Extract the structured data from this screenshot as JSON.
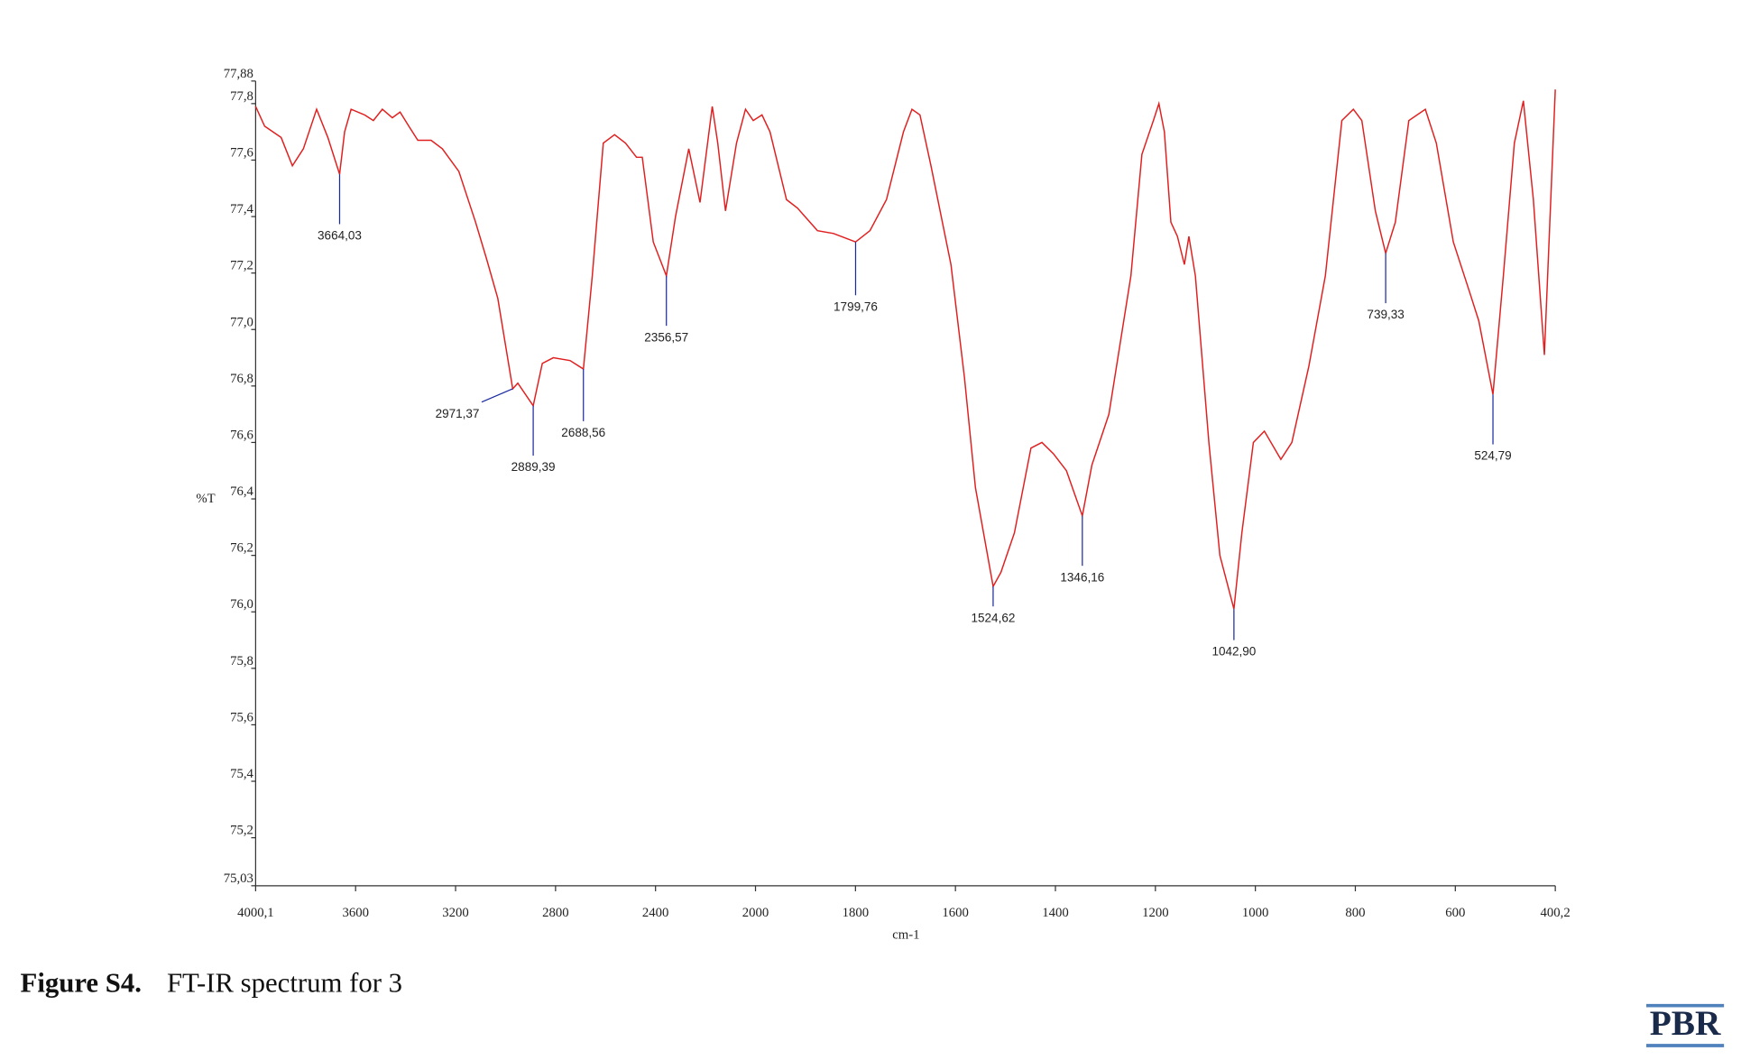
{
  "chart_data": {
    "type": "line",
    "ylabel": "%T",
    "xlabel": "cm-1",
    "xlim": [
      4000.1,
      400.2
    ],
    "xticks": [
      {
        "value": 4000.1,
        "label": "4000,1"
      },
      3600,
      3200,
      2800,
      2400,
      2000,
      1800,
      1600,
      1400,
      1200,
      1000,
      800,
      600,
      {
        "value": 400.2,
        "label": "400,2"
      }
    ],
    "ylim": [
      75.03,
      77.88
    ],
    "yticks": [
      {
        "value": 75.03,
        "label": "75,03"
      },
      {
        "value": 75.2,
        "label": "75,2"
      },
      {
        "value": 75.4,
        "label": "75,4"
      },
      {
        "value": 75.6,
        "label": "75,6"
      },
      {
        "value": 75.8,
        "label": "75,8"
      },
      {
        "value": 76.0,
        "label": "76,0"
      },
      {
        "value": 76.2,
        "label": "76,2"
      },
      {
        "value": 76.4,
        "label": "76,4"
      },
      {
        "value": 76.6,
        "label": "76,6"
      },
      {
        "value": 76.8,
        "label": "76,8"
      },
      {
        "value": 77.0,
        "label": "77,0"
      },
      {
        "value": 77.2,
        "label": "77,2"
      },
      {
        "value": 77.4,
        "label": "77,4"
      },
      {
        "value": 77.6,
        "label": "77,6"
      },
      {
        "value": 77.8,
        "label": "77,8"
      },
      {
        "value": 77.88,
        "label": "77,88"
      }
    ],
    "x": [
      4000.1,
      3964,
      3898,
      3853,
      3809,
      3756,
      3711,
      3664.03,
      3644,
      3618,
      3564,
      3529,
      3493,
      3453,
      3422,
      3387,
      3351,
      3298,
      3253,
      3187,
      3120,
      3076,
      3031,
      2971.37,
      2951,
      2889.39,
      2853,
      2809,
      2742,
      2688.56,
      2653,
      2609,
      2564,
      2520,
      2476,
      2453,
      2409,
      2356.57,
      2320,
      2267,
      2222,
      2173,
      2151,
      2120,
      2076,
      2040,
      2009,
      1987,
      1971,
      1938,
      1916,
      1876,
      1844,
      1799.76,
      1771,
      1738,
      1704,
      1687,
      1671,
      1649,
      1609,
      1582,
      1560,
      1524.62,
      1509,
      1482,
      1449,
      1427,
      1404,
      1378,
      1346.16,
      1327,
      1293,
      1249,
      1227,
      1204,
      1193,
      1182,
      1169,
      1156,
      1142,
      1133,
      1120,
      1093,
      1071,
      1042.9,
      1027,
      1004,
      982,
      949,
      927,
      893,
      860,
      827,
      804,
      787,
      760,
      739.33,
      720,
      693,
      660,
      638,
      604,
      571,
      553,
      524.79,
      504,
      482,
      464,
      444,
      422,
      400.2
    ],
    "series": [
      {
        "color": "#e02020",
        "values": [
          77.79,
          77.72,
          77.68,
          77.58,
          77.64,
          77.78,
          77.68,
          77.55,
          77.7,
          77.78,
          77.76,
          77.74,
          77.78,
          77.75,
          77.77,
          77.72,
          77.67,
          77.67,
          77.64,
          77.56,
          77.38,
          77.25,
          77.11,
          76.79,
          76.81,
          76.73,
          76.88,
          76.9,
          76.89,
          76.86,
          77.19,
          77.66,
          77.69,
          77.66,
          77.61,
          77.61,
          77.31,
          77.19,
          77.4,
          77.64,
          77.45,
          77.79,
          77.66,
          77.42,
          77.66,
          77.78,
          77.74,
          77.76,
          77.7,
          77.46,
          77.43,
          77.35,
          77.34,
          77.31,
          77.35,
          77.46,
          77.7,
          77.78,
          77.76,
          77.58,
          77.23,
          76.83,
          76.44,
          76.09,
          76.14,
          76.28,
          76.58,
          76.6,
          76.56,
          76.5,
          76.34,
          76.52,
          76.7,
          77.19,
          77.62,
          77.74,
          77.8,
          77.7,
          77.38,
          77.33,
          77.23,
          77.33,
          77.19,
          76.6,
          76.2,
          76.01,
          76.28,
          76.6,
          76.64,
          76.54,
          76.6,
          76.87,
          77.19,
          77.74,
          77.78,
          77.74,
          77.42,
          77.27,
          77.38,
          77.74,
          77.78,
          77.66,
          77.31,
          77.13,
          77.03,
          76.77,
          77.19,
          77.66,
          77.81,
          77.46,
          76.91,
          77.85
        ]
      }
    ],
    "annotations": [
      {
        "x": 3664.03,
        "y": 77.55,
        "label": "3664,03"
      },
      {
        "x": 2971.37,
        "y": 76.79,
        "label": "2971,37"
      },
      {
        "x": 2889.39,
        "y": 76.73,
        "label": "2889,39"
      },
      {
        "x": 2688.56,
        "y": 76.86,
        "label": "2688,56"
      },
      {
        "x": 2356.57,
        "y": 77.19,
        "label": "2356,57"
      },
      {
        "x": 1799.76,
        "y": 77.31,
        "label": "1799,76"
      },
      {
        "x": 1524.62,
        "y": 76.09,
        "label": "1524,62"
      },
      {
        "x": 1346.16,
        "y": 76.34,
        "label": "1346,16"
      },
      {
        "x": 1042.9,
        "y": 76.01,
        "label": "1042,90"
      },
      {
        "x": 739.33,
        "y": 77.27,
        "label": "739,33"
      },
      {
        "x": 524.79,
        "y": 76.77,
        "label": "524,79"
      }
    ]
  },
  "caption": {
    "label": "Figure S4.",
    "text": "FT-IR spectrum for 3"
  },
  "logo": "PBR"
}
